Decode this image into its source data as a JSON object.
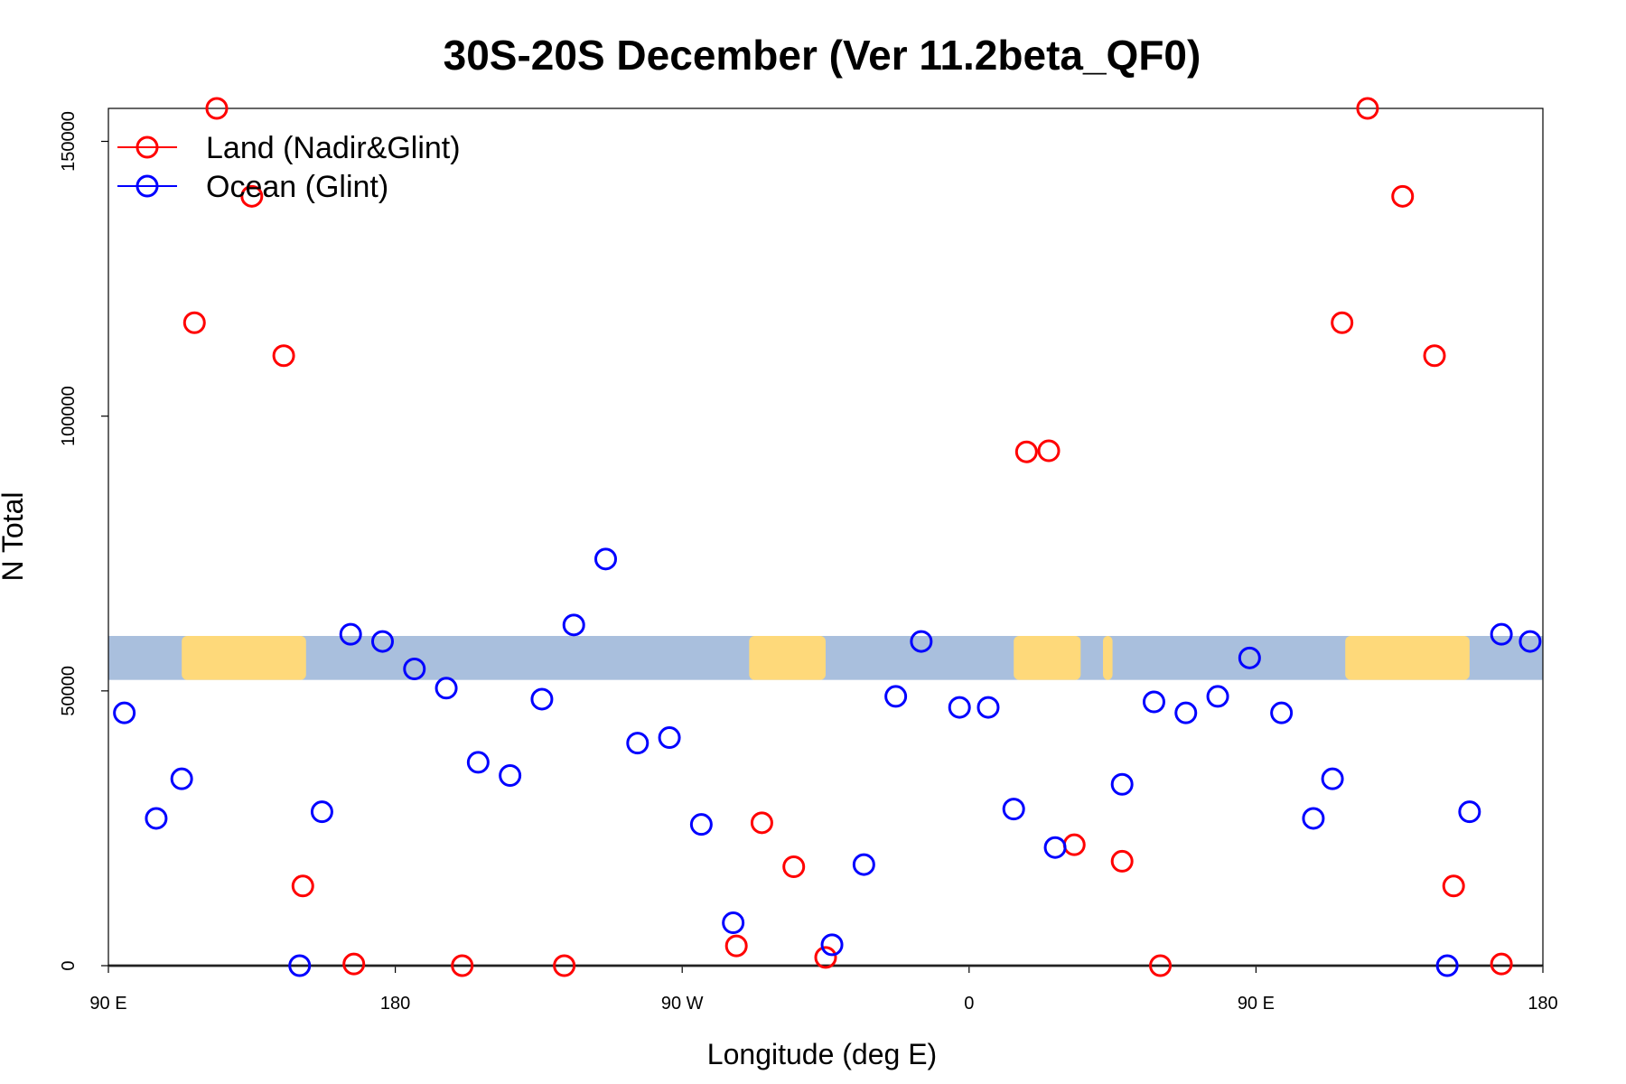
{
  "chart_data": {
    "type": "scatter",
    "title": "30S-20S December (Ver 11.2beta_QF0)",
    "xlabel": "Longitude (deg E)",
    "ylabel": "N Total",
    "xlim": [
      90,
      540
    ],
    "ylim": [
      0,
      156000
    ],
    "x_ticks": [
      {
        "value": 90,
        "label": "90 E"
      },
      {
        "value": 180,
        "label": "180"
      },
      {
        "value": 270,
        "label": "90 W"
      },
      {
        "value": 360,
        "label": "0"
      },
      {
        "value": 450,
        "label": "90 E"
      },
      {
        "value": 540,
        "label": "180"
      }
    ],
    "y_ticks": [
      {
        "value": 0,
        "label": "0"
      },
      {
        "value": 50000,
        "label": "50000"
      },
      {
        "value": 100000,
        "label": "100000"
      },
      {
        "value": 150000,
        "label": "150000"
      }
    ],
    "legend": {
      "position": "top-left",
      "entries": [
        {
          "label": "Land (Nadir&Glint)",
          "color": "#ff0000"
        },
        {
          "label": "Ocean (Glint)",
          "color": "#0000ff"
        }
      ]
    },
    "map_strip": {
      "y_range": [
        52000,
        60000
      ],
      "ocean_color": "#a9bfdd",
      "land_color": "#fed97a",
      "land_segments": [
        [
          113,
          152
        ],
        [
          291,
          315
        ],
        [
          374,
          395
        ],
        [
          402,
          405
        ],
        [
          478,
          517
        ]
      ]
    },
    "series": [
      {
        "name": "Land (Nadir&Glint)",
        "color": "#ff0000",
        "points": [
          {
            "x": 117,
            "y": 117000
          },
          {
            "x": 124,
            "y": 156000
          },
          {
            "x": 135,
            "y": 140000
          },
          {
            "x": 145,
            "y": 111000
          },
          {
            "x": 151,
            "y": 14500
          },
          {
            "x": 167,
            "y": 300
          },
          {
            "x": 201,
            "y": 0
          },
          {
            "x": 233,
            "y": 0
          },
          {
            "x": 287,
            "y": 3600
          },
          {
            "x": 295,
            "y": 26000
          },
          {
            "x": 305,
            "y": 18000
          },
          {
            "x": 315,
            "y": 1500
          },
          {
            "x": 378,
            "y": 93500
          },
          {
            "x": 385,
            "y": 93700
          },
          {
            "x": 393,
            "y": 22000
          },
          {
            "x": 408,
            "y": 19000
          },
          {
            "x": 420,
            "y": 0
          },
          {
            "x": 477,
            "y": 117000
          },
          {
            "x": 485,
            "y": 156000
          },
          {
            "x": 496,
            "y": 140000
          },
          {
            "x": 506,
            "y": 111000
          },
          {
            "x": 512,
            "y": 14500
          },
          {
            "x": 527,
            "y": 300
          }
        ]
      },
      {
        "name": "Ocean (Glint)",
        "color": "#0000ff",
        "points": [
          {
            "x": 95,
            "y": 46000
          },
          {
            "x": 105,
            "y": 26800
          },
          {
            "x": 113,
            "y": 34000
          },
          {
            "x": 150,
            "y": 0
          },
          {
            "x": 157,
            "y": 28000
          },
          {
            "x": 166,
            "y": 60300
          },
          {
            "x": 176,
            "y": 59000
          },
          {
            "x": 186,
            "y": 54000
          },
          {
            "x": 196,
            "y": 50500
          },
          {
            "x": 206,
            "y": 37000
          },
          {
            "x": 216,
            "y": 34600
          },
          {
            "x": 226,
            "y": 48500
          },
          {
            "x": 236,
            "y": 62000
          },
          {
            "x": 246,
            "y": 74000
          },
          {
            "x": 256,
            "y": 40500
          },
          {
            "x": 266,
            "y": 41500
          },
          {
            "x": 276,
            "y": 25700
          },
          {
            "x": 286,
            "y": 7800
          },
          {
            "x": 317,
            "y": 3800
          },
          {
            "x": 327,
            "y": 18400
          },
          {
            "x": 337,
            "y": 49000
          },
          {
            "x": 345,
            "y": 59000
          },
          {
            "x": 357,
            "y": 47000
          },
          {
            "x": 366,
            "y": 47000
          },
          {
            "x": 374,
            "y": 28500
          },
          {
            "x": 387,
            "y": 21500
          },
          {
            "x": 408,
            "y": 33000
          },
          {
            "x": 418,
            "y": 48000
          },
          {
            "x": 428,
            "y": 46000
          },
          {
            "x": 438,
            "y": 49000
          },
          {
            "x": 448,
            "y": 56000
          },
          {
            "x": 458,
            "y": 46000
          },
          {
            "x": 468,
            "y": 26800
          },
          {
            "x": 474,
            "y": 34000
          },
          {
            "x": 510,
            "y": 0
          },
          {
            "x": 517,
            "y": 28000
          },
          {
            "x": 527,
            "y": 60300
          },
          {
            "x": 536,
            "y": 59000
          }
        ]
      }
    ]
  }
}
